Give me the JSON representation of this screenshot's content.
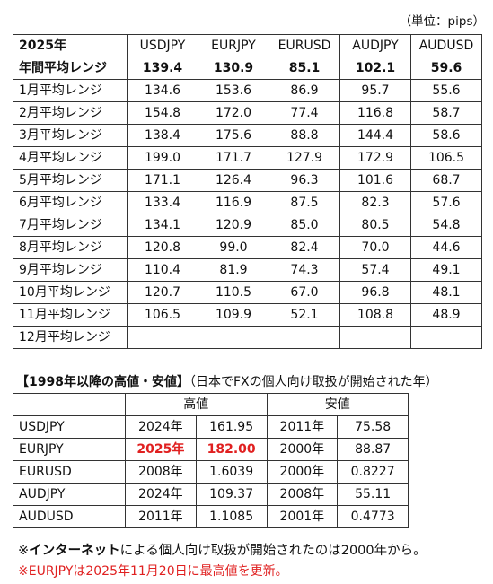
{
  "unit_label": "（単位：pips）",
  "table1": {
    "header": [
      "2025年",
      "USDJPY",
      "EURJPY",
      "EURUSD",
      "AUDJPY",
      "AUDUSD"
    ],
    "annual": {
      "label": "年間平均レンジ",
      "values": [
        "139.4",
        "130.9",
        "85.1",
        "102.1",
        "59.6"
      ]
    },
    "rows": [
      {
        "label": "1月平均レンジ",
        "values": [
          "134.6",
          "153.6",
          "86.9",
          "95.7",
          "55.6"
        ]
      },
      {
        "label": "2月平均レンジ",
        "values": [
          "154.8",
          "172.0",
          "77.4",
          "116.8",
          "58.7"
        ]
      },
      {
        "label": "3月平均レンジ",
        "values": [
          "138.4",
          "175.6",
          "88.8",
          "144.4",
          "58.6"
        ]
      },
      {
        "label": "4月平均レンジ",
        "values": [
          "199.0",
          "171.7",
          "127.9",
          "172.9",
          "106.5"
        ]
      },
      {
        "label": "5月平均レンジ",
        "values": [
          "171.1",
          "126.4",
          "96.3",
          "101.6",
          "68.7"
        ]
      },
      {
        "label": "6月平均レンジ",
        "values": [
          "133.4",
          "116.9",
          "87.5",
          "82.3",
          "57.6"
        ]
      },
      {
        "label": "7月平均レンジ",
        "values": [
          "134.1",
          "120.9",
          "85.0",
          "80.5",
          "54.8"
        ]
      },
      {
        "label": "8月平均レンジ",
        "values": [
          "120.8",
          "99.0",
          "82.4",
          "70.0",
          "44.6"
        ]
      },
      {
        "label": "9月平均レンジ",
        "values": [
          "110.4",
          "81.9",
          "74.3",
          "57.4",
          "49.1"
        ]
      },
      {
        "label": "10月平均レンジ",
        "values": [
          "120.7",
          "110.5",
          "67.0",
          "96.8",
          "48.1"
        ]
      },
      {
        "label": "11月平均レンジ",
        "values": [
          "106.5",
          "109.9",
          "52.1",
          "108.8",
          "48.9"
        ]
      },
      {
        "label": "12月平均レンジ",
        "values": [
          "",
          "",
          "",
          "",
          ""
        ]
      }
    ]
  },
  "section2": {
    "title": "【1998年以降の高値・安値】",
    "subtitle": "（日本でFXの個人向け取扱が開始された年）",
    "high_label": "高値",
    "low_label": "安値",
    "rows": [
      {
        "pair": "USDJPY",
        "high_year": "2024年",
        "high": "161.95",
        "low_year": "2011年",
        "low": "75.58"
      },
      {
        "pair": "EURJPY",
        "high_year": "2025年",
        "high": "182.00",
        "low_year": "2000年",
        "low": "88.87"
      },
      {
        "pair": "EURUSD",
        "high_year": "2008年",
        "high": "1.6039",
        "low_year": "2000年",
        "low": "0.8227"
      },
      {
        "pair": "AUDJPY",
        "high_year": "2024年",
        "high": "109.37",
        "low_year": "2008年",
        "low": "55.11"
      },
      {
        "pair": "AUDUSD",
        "high_year": "2011年",
        "high": "1.1085",
        "low_year": "2001年",
        "low": "0.4773"
      }
    ]
  },
  "notes": {
    "note1_prefix": "※",
    "note1_bold": "インターネット",
    "note1_rest": "による個人向け取扱が開始されたのは2000年から。",
    "note2": "※EURJPYは2025年11月20日に最高値を更新。"
  },
  "colors": {
    "highlight": "#e02020"
  }
}
